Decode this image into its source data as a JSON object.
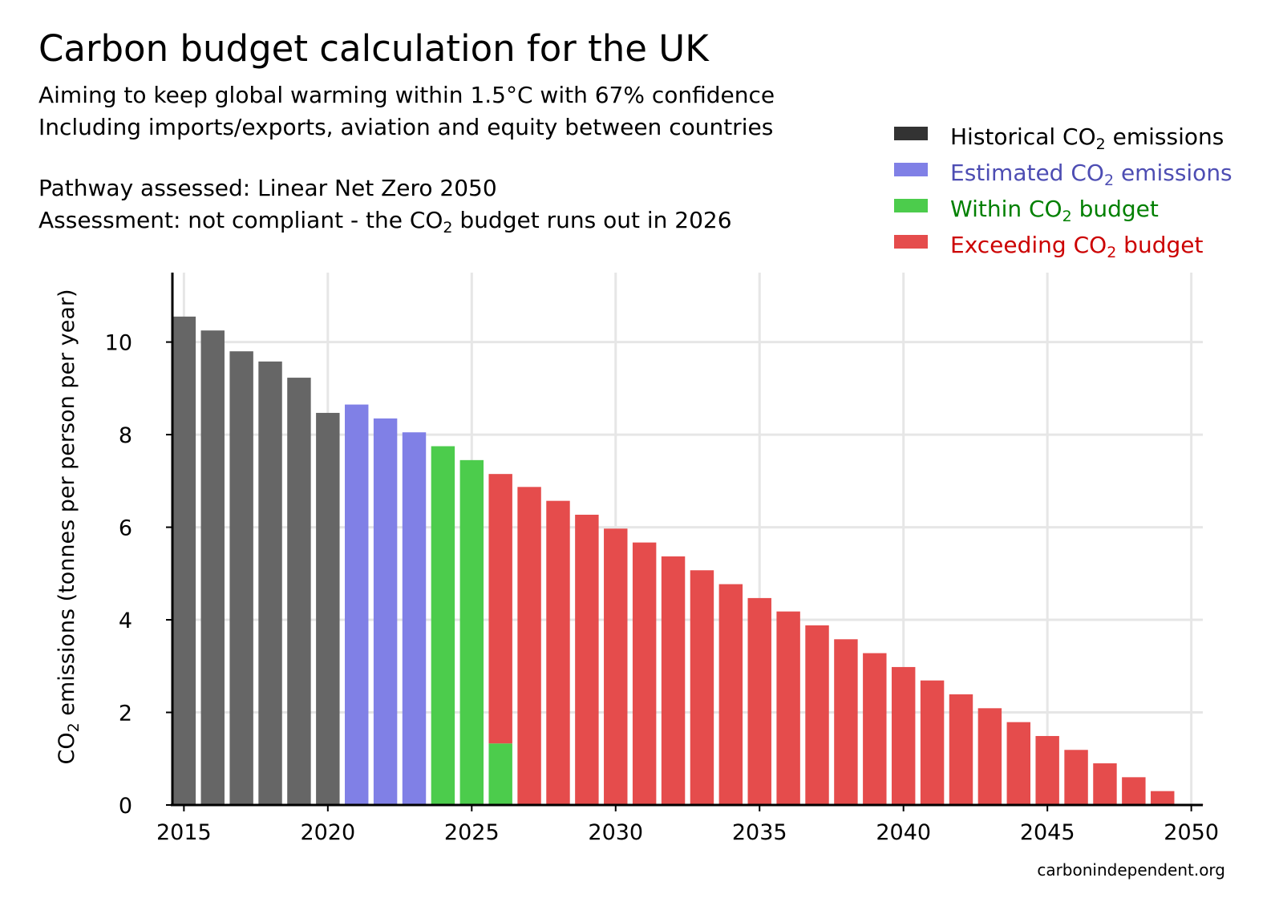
{
  "header": {
    "title": "Carbon budget calculation for the UK",
    "subtitle_line1": "Aiming to keep global warming within 1.5°C with 67% confidence",
    "subtitle_line2": "Including imports/exports, aviation and equity between countries",
    "pathway": "Pathway assessed: Linear Net Zero 2050",
    "assessment_prefix": "Assessment: not compliant - the CO",
    "assessment_subscript": "2",
    "assessment_suffix": " budget runs out in 2026"
  },
  "legend": [
    {
      "pre": "Historical CO",
      "sub": "2",
      "post": " emissions",
      "swatch": "#333333",
      "text_color": "#000000"
    },
    {
      "pre": "Estimated CO",
      "sub": "2",
      "post": " emissions",
      "swatch": "#8080e6",
      "text_color": "#4d4db3"
    },
    {
      "pre": "Within CO",
      "sub": "2",
      "post": " budget",
      "swatch": "#4ccc4c",
      "text_color": "#008000"
    },
    {
      "pre": "Exceeding CO",
      "sub": "2",
      "post": " budget",
      "swatch": "#e54c4c",
      "text_color": "#cc0000"
    }
  ],
  "axes": {
    "ylabel_pre": "CO",
    "ylabel_sub": "2",
    "ylabel_post": " emissions (tonnes per person per year)"
  },
  "source": "carbonindependent.org",
  "colors": {
    "historical": "#666666",
    "estimated": "#8080e6",
    "within": "#4ccc4c",
    "exceeding": "#e54c4c",
    "grid": "#e6e6e6"
  },
  "chart_data": {
    "type": "bar",
    "stacked": true,
    "xlim": [
      2014.6,
      2050.4
    ],
    "ylim": [
      0,
      11.5
    ],
    "xticks": [
      "2015",
      "2020",
      "2025",
      "2030",
      "2035",
      "2040",
      "2045",
      "2050"
    ],
    "yticks": [
      "0",
      "2",
      "4",
      "6",
      "8",
      "10"
    ],
    "grid": true,
    "legend_position": "top-right",
    "x": [
      2015,
      2016,
      2017,
      2018,
      2019,
      2020,
      2021,
      2022,
      2023,
      2024,
      2025,
      2026,
      2027,
      2028,
      2029,
      2030,
      2031,
      2032,
      2033,
      2034,
      2035,
      2036,
      2037,
      2038,
      2039,
      2040,
      2041,
      2042,
      2043,
      2044,
      2045,
      2046,
      2047,
      2048,
      2049,
      2050
    ],
    "series": [
      {
        "name": "Historical CO2 emissions",
        "values": [
          10.55,
          10.25,
          9.8,
          9.58,
          9.23,
          8.47,
          0,
          0,
          0,
          0,
          0,
          0,
          0,
          0,
          0,
          0,
          0,
          0,
          0,
          0,
          0,
          0,
          0,
          0,
          0,
          0,
          0,
          0,
          0,
          0,
          0,
          0,
          0,
          0,
          0,
          0
        ]
      },
      {
        "name": "Estimated CO2 emissions",
        "values": [
          0,
          0,
          0,
          0,
          0,
          0,
          8.65,
          8.35,
          8.05,
          0,
          0,
          0,
          0,
          0,
          0,
          0,
          0,
          0,
          0,
          0,
          0,
          0,
          0,
          0,
          0,
          0,
          0,
          0,
          0,
          0,
          0,
          0,
          0,
          0,
          0,
          0
        ]
      },
      {
        "name": "Within CO2 budget",
        "values": [
          0,
          0,
          0,
          0,
          0,
          0,
          0,
          0,
          0,
          7.75,
          7.45,
          1.33,
          0,
          0,
          0,
          0,
          0,
          0,
          0,
          0,
          0,
          0,
          0,
          0,
          0,
          0,
          0,
          0,
          0,
          0,
          0,
          0,
          0,
          0,
          0,
          0
        ]
      },
      {
        "name": "Exceeding CO2 budget",
        "values": [
          0,
          0,
          0,
          0,
          0,
          0,
          0,
          0,
          0,
          0,
          0,
          5.82,
          6.87,
          6.57,
          6.27,
          5.97,
          5.67,
          5.37,
          5.07,
          4.77,
          4.47,
          4.18,
          3.88,
          3.58,
          3.28,
          2.98,
          2.69,
          2.39,
          2.09,
          1.79,
          1.49,
          1.19,
          0.9,
          0.6,
          0.3,
          0.02
        ]
      }
    ]
  }
}
